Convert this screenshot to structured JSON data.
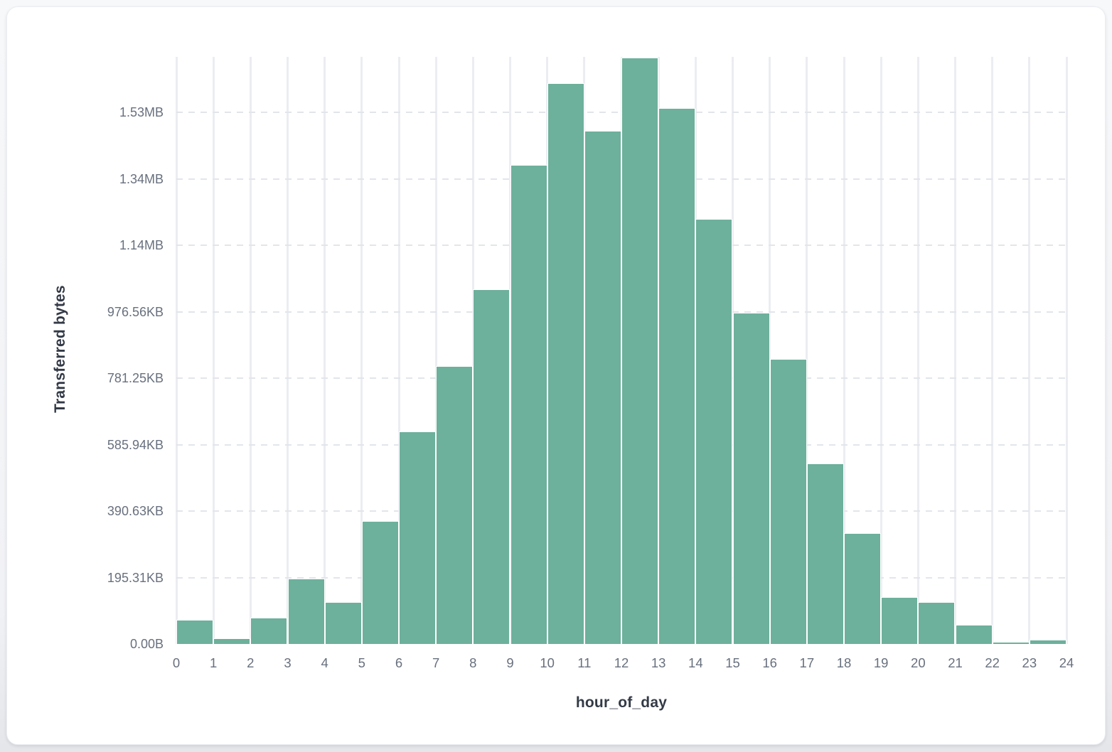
{
  "page": {
    "background_top": "#f7f8fa",
    "background_bottom": "#e4e6ea"
  },
  "card": {
    "background": "#ffffff",
    "border_color": "#ebedf1"
  },
  "chart_data": {
    "type": "bar",
    "subtype": "histogram",
    "title": "",
    "xlabel": "hour_of_day",
    "ylabel": "Transferred bytes",
    "x": [
      0,
      1,
      2,
      3,
      4,
      5,
      6,
      7,
      8,
      9,
      10,
      11,
      12,
      13,
      14,
      15,
      16,
      17,
      18,
      19,
      20,
      21,
      22,
      23
    ],
    "values_bytes": [
      73400,
      16500,
      79200,
      196200,
      126900,
      369600,
      640600,
      836800,
      1068600,
      1443100,
      1689200,
      1544500,
      1765600,
      1614300,
      1280400,
      997400,
      858200,
      544300,
      333900,
      141300,
      126900,
      57100,
      6500,
      13500
    ],
    "x_ticks": [
      "0",
      "1",
      "2",
      "3",
      "4",
      "5",
      "6",
      "7",
      "8",
      "9",
      "10",
      "11",
      "12",
      "13",
      "14",
      "15",
      "16",
      "17",
      "18",
      "19",
      "20",
      "21",
      "22",
      "23",
      "24"
    ],
    "y_ticks": [
      {
        "label": "0.00B",
        "bytes": 0
      },
      {
        "label": "195.31KB",
        "bytes": 200000
      },
      {
        "label": "390.63KB",
        "bytes": 400000
      },
      {
        "label": "585.94KB",
        "bytes": 600000
      },
      {
        "label": "781.25KB",
        "bytes": 800000
      },
      {
        "label": "976.56KB",
        "bytes": 1000000
      },
      {
        "label": "1.14MB",
        "bytes": 1200000
      },
      {
        "label": "1.34MB",
        "bytes": 1400000
      },
      {
        "label": "1.53MB",
        "bytes": 1600000
      }
    ],
    "ylim_bytes": [
      0,
      1767800
    ],
    "grid": true,
    "legend": false,
    "bar_color": "#6DB09B",
    "bar_edge_color": "#ffffff",
    "vgrid_color": "#ECEDF2",
    "hgrid_color": "#E2E5EA",
    "tick_label_color": "#68707E",
    "axis_title_color": "#333A46"
  }
}
